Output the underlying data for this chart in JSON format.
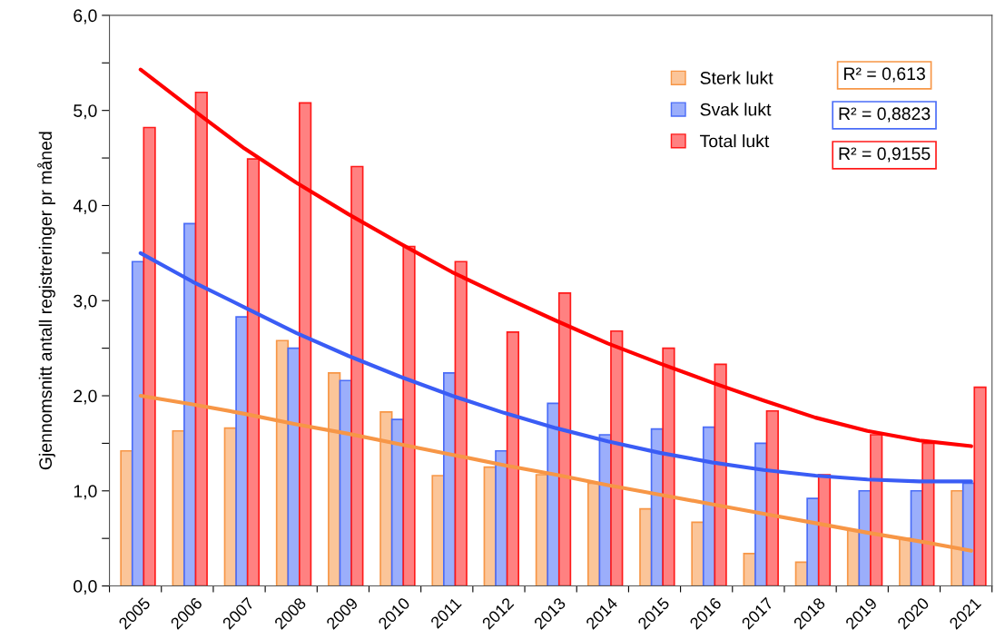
{
  "chart_data": {
    "type": "bar",
    "ylabel": "Gjennomsnitt antall registreringer pr måned",
    "categories": [
      "2005",
      "2006",
      "2007",
      "2008",
      "2009",
      "2010",
      "2011",
      "2012",
      "2013",
      "2014",
      "2015",
      "2016",
      "2017",
      "2018",
      "2019",
      "2020",
      "2021"
    ],
    "series": [
      {
        "name": "Sterk lukt",
        "color": "#f79646",
        "values": [
          1.42,
          1.63,
          1.66,
          2.58,
          2.24,
          1.83,
          1.16,
          1.25,
          1.17,
          1.08,
          0.81,
          0.67,
          0.34,
          0.25,
          0.59,
          0.5,
          1.0
        ]
      },
      {
        "name": "Svak lukt",
        "color": "#4a6cf7",
        "values": [
          3.41,
          3.81,
          2.83,
          2.5,
          2.16,
          1.75,
          2.24,
          1.42,
          1.92,
          1.59,
          1.65,
          1.67,
          1.5,
          0.92,
          1.0,
          1.0,
          1.08
        ]
      },
      {
        "name": "Total lukt",
        "color": "#ff1a1a",
        "values": [
          4.82,
          5.19,
          4.49,
          5.08,
          4.41,
          3.57,
          3.41,
          2.67,
          3.08,
          2.68,
          2.5,
          2.33,
          1.84,
          1.17,
          1.59,
          1.5,
          2.09
        ]
      },
      {
        "type": "line",
        "color": "#f79646",
        "values": [
          2.0,
          1.91,
          1.81,
          1.7,
          1.6,
          1.49,
          1.38,
          1.27,
          1.17,
          1.06,
          0.96,
          0.86,
          0.76,
          0.66,
          0.56,
          0.47,
          0.37
        ]
      },
      {
        "type": "line",
        "color": "#3a5cf5",
        "values": [
          3.5,
          3.2,
          2.93,
          2.66,
          2.42,
          2.2,
          2.0,
          1.82,
          1.66,
          1.52,
          1.4,
          1.3,
          1.22,
          1.16,
          1.12,
          1.1,
          1.1
        ]
      },
      {
        "type": "line",
        "color": "#ff0000",
        "values": [
          5.43,
          5.01,
          4.6,
          4.24,
          3.91,
          3.6,
          3.3,
          3.04,
          2.79,
          2.55,
          2.34,
          2.14,
          1.95,
          1.77,
          1.63,
          1.53,
          1.47
        ]
      }
    ],
    "annotations": [
      "R² = 0,613",
      "R² = 0,8823",
      "R² = 0,9155"
    ],
    "ylim": [
      0,
      6
    ],
    "yticks": [
      {
        "value": 0,
        "label": "0,0"
      },
      {
        "value": 0.5,
        "label": null
      },
      {
        "value": 1,
        "label": "1,0"
      },
      {
        "value": 1.5,
        "label": null
      },
      {
        "value": 2,
        "label": "2,0"
      },
      {
        "value": 2.5,
        "label": null
      },
      {
        "value": 3,
        "label": "3,0"
      },
      {
        "value": 3.5,
        "label": null
      },
      {
        "value": 4,
        "label": "4,0"
      },
      {
        "value": 4.5,
        "label": null
      },
      {
        "value": 5,
        "label": "5,0"
      },
      {
        "value": 5.5,
        "label": null
      },
      {
        "value": 6,
        "label": "6,0"
      }
    ],
    "grid": false,
    "legend": "top right",
    "line_style": "solid"
  }
}
